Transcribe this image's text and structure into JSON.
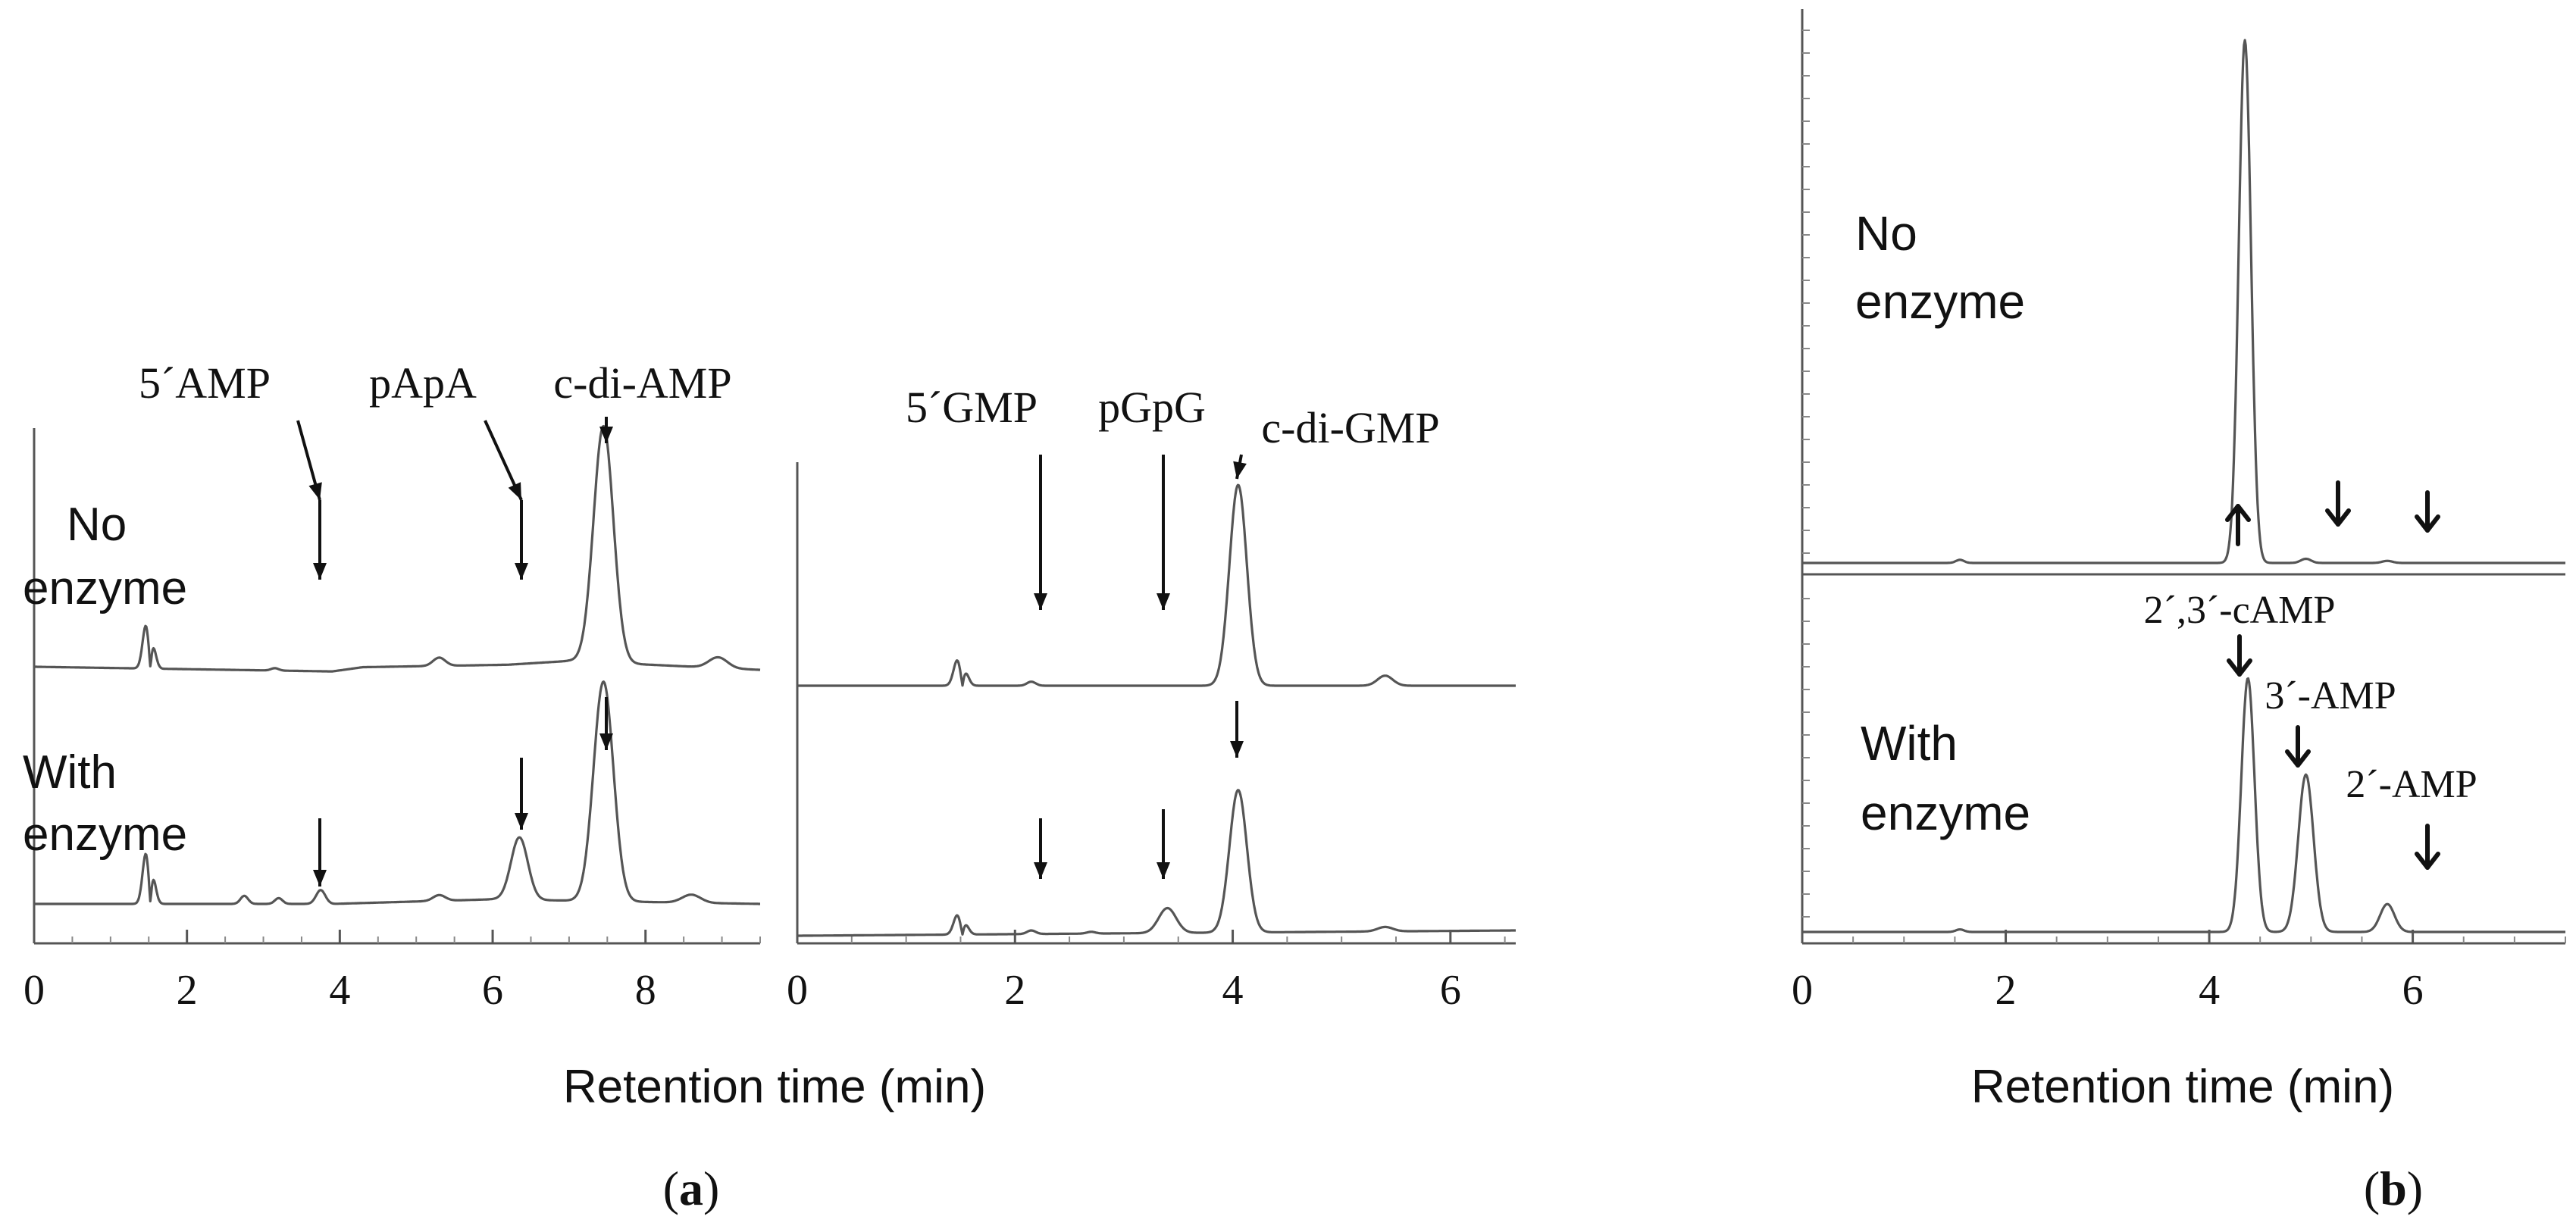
{
  "chart_data": [
    {
      "panel": "a",
      "type": "line",
      "xlabel": "Retention time (min)",
      "xticks": [
        0,
        2,
        4,
        6,
        8
      ],
      "xlim": [
        0,
        9.5
      ],
      "series": [
        {
          "name": "No enzyme",
          "label_lines": [
            "No",
            "enzyme"
          ],
          "peaks": [
            {
              "x": 1.5,
              "h": 0.1,
              "w": 0.05,
              "deriv": true
            },
            {
              "x": 3.15,
              "h": 0.01,
              "w": 0.05
            },
            {
              "x": 5.3,
              "h": 0.035,
              "w": 0.08
            },
            {
              "x": 7.45,
              "h": 1.0,
              "w": 0.13
            },
            {
              "x": 8.95,
              "h": 0.045,
              "w": 0.12
            }
          ],
          "drift": [
            [
              3.9,
              0.0
            ],
            [
              4.3,
              0.02
            ],
            [
              6.2,
              0.04
            ],
            [
              7.0,
              0.06
            ],
            [
              9.5,
              0.035
            ]
          ]
        },
        {
          "name": "With enzyme",
          "label_lines": [
            "With",
            "enzyme"
          ],
          "peaks": [
            {
              "x": 1.5,
              "h": 0.12,
              "w": 0.05,
              "deriv": true
            },
            {
              "x": 2.75,
              "h": 0.035,
              "w": 0.05
            },
            {
              "x": 3.2,
              "h": 0.025,
              "w": 0.05
            },
            {
              "x": 3.75,
              "h": 0.06,
              "w": 0.06
            },
            {
              "x": 5.3,
              "h": 0.025,
              "w": 0.08
            },
            {
              "x": 6.35,
              "h": 0.27,
              "w": 0.11
            },
            {
              "x": 7.45,
              "h": 0.95,
              "w": 0.13
            },
            {
              "x": 8.6,
              "h": 0.035,
              "w": 0.12
            }
          ],
          "drift": [
            [
              3.9,
              0.0
            ],
            [
              6.0,
              0.02
            ],
            [
              9.5,
              0.0
            ]
          ]
        }
      ],
      "annotations": [
        {
          "label": "5´AMP",
          "x": 3.75
        },
        {
          "label": "pApA",
          "x": 6.35
        },
        {
          "label": "c-di-AMP",
          "x": 7.45
        }
      ]
    },
    {
      "panel": "a",
      "type": "line",
      "xlabel": "Retention time (min)",
      "xticks": [
        0,
        2,
        4,
        6
      ],
      "xlim": [
        0,
        6.6
      ],
      "series": [
        {
          "name": "No enzyme",
          "peaks": [
            {
              "x": 1.5,
              "h": 0.07,
              "w": 0.04,
              "deriv": true
            },
            {
              "x": 2.15,
              "h": 0.02,
              "w": 0.04
            },
            {
              "x": 4.05,
              "h": 1.0,
              "w": 0.08
            },
            {
              "x": 5.4,
              "h": 0.05,
              "w": 0.07
            }
          ]
        },
        {
          "name": "With enzyme",
          "peaks": [
            {
              "x": 1.5,
              "h": 0.06,
              "w": 0.04,
              "deriv": true
            },
            {
              "x": 2.15,
              "h": 0.02,
              "w": 0.04
            },
            {
              "x": 2.7,
              "h": 0.01,
              "w": 0.04
            },
            {
              "x": 3.4,
              "h": 0.14,
              "w": 0.08
            },
            {
              "x": 4.05,
              "h": 0.8,
              "w": 0.08
            },
            {
              "x": 5.4,
              "h": 0.025,
              "w": 0.07
            }
          ]
        }
      ],
      "annotations": [
        {
          "label": "5´GMP",
          "x": 2.25
        },
        {
          "label": "pGpG",
          "x": 3.38
        },
        {
          "label": "c-di-GMP",
          "x": 4.05
        }
      ]
    },
    {
      "panel": "b",
      "type": "line",
      "xlabel": "Retention time (min)",
      "xticks": [
        0,
        2,
        4,
        6
      ],
      "xlim": [
        0,
        7.5
      ],
      "series": [
        {
          "name": "No enzyme",
          "label_lines": [
            "No",
            "enzyme"
          ],
          "peaks": [
            {
              "x": 1.55,
              "h": 0.006,
              "w": 0.04
            },
            {
              "x": 4.35,
              "h": 1.0,
              "w": 0.06
            },
            {
              "x": 4.95,
              "h": 0.008,
              "w": 0.05
            },
            {
              "x": 5.75,
              "h": 0.004,
              "w": 0.05
            }
          ]
        },
        {
          "name": "With enzyme",
          "label_lines": [
            "With",
            "enzyme"
          ],
          "peaks": [
            {
              "x": 1.55,
              "h": 0.01,
              "w": 0.04
            },
            {
              "x": 4.38,
              "h": 1.0,
              "w": 0.065
            },
            {
              "x": 4.95,
              "h": 0.62,
              "w": 0.075
            },
            {
              "x": 5.75,
              "h": 0.11,
              "w": 0.07
            }
          ]
        }
      ],
      "annotations": [
        {
          "label": "2´,3´-cAMP",
          "x": 4.35
        },
        {
          "label": "3´-AMP",
          "x": 4.95
        },
        {
          "label": "2´-AMP",
          "x": 5.75
        }
      ]
    }
  ],
  "panel_labels": {
    "a": "(a)",
    "b": "(b)"
  },
  "panel_letters": {
    "a": "a",
    "b": "b"
  }
}
